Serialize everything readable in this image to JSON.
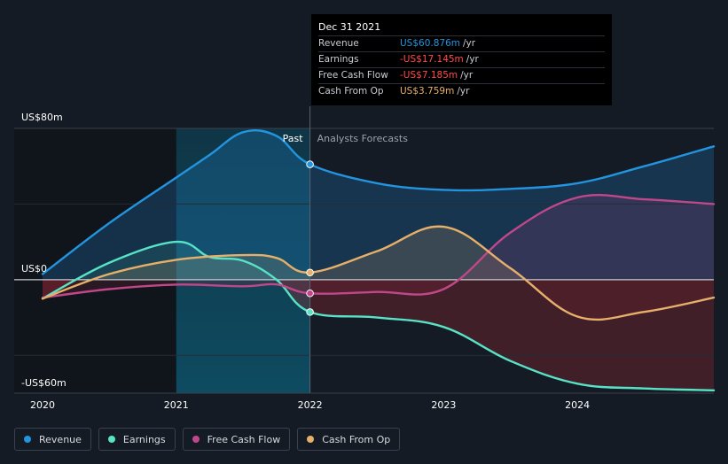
{
  "chart_data": {
    "type": "line",
    "x_domain": [
      2020,
      2025.02
    ],
    "y_domain": [
      -60,
      80
    ],
    "y_ticks": [
      {
        "value": 80,
        "label": "US$80m"
      },
      {
        "value": 0,
        "label": "US$0"
      },
      {
        "value": -60,
        "label": "-US$60m"
      }
    ],
    "x_ticks": [
      {
        "value": 2020,
        "label": "2020"
      },
      {
        "value": 2021,
        "label": "2021"
      },
      {
        "value": 2022,
        "label": "2022"
      },
      {
        "value": 2023,
        "label": "2023"
      },
      {
        "value": 2024,
        "label": "2024"
      }
    ],
    "past_label": "Past",
    "forecast_label": "Analysts Forecasts",
    "divider_x": 2022,
    "highlight_start_x": 2021,
    "series": [
      {
        "name": "Revenue",
        "color": "#2394df",
        "points": [
          [
            2020,
            3
          ],
          [
            2020.5,
            30
          ],
          [
            2021,
            54
          ],
          [
            2021.25,
            66
          ],
          [
            2021.5,
            78
          ],
          [
            2021.75,
            76
          ],
          [
            2022,
            61
          ],
          [
            2022.5,
            51
          ],
          [
            2023,
            47.5
          ],
          [
            2023.5,
            48
          ],
          [
            2024,
            51
          ],
          [
            2024.5,
            60
          ],
          [
            2025.02,
            70.5
          ]
        ]
      },
      {
        "name": "Earnings",
        "color": "#58e3c6",
        "points": [
          [
            2020,
            -10
          ],
          [
            2020.5,
            9
          ],
          [
            2021,
            20
          ],
          [
            2021.25,
            12
          ],
          [
            2021.5,
            10
          ],
          [
            2021.75,
            0
          ],
          [
            2022,
            -17.1
          ],
          [
            2022.5,
            -20
          ],
          [
            2023,
            -25
          ],
          [
            2023.5,
            -43
          ],
          [
            2024,
            -55
          ],
          [
            2024.5,
            -57.5
          ],
          [
            2025.02,
            -58.5
          ]
        ]
      },
      {
        "name": "Free Cash Flow",
        "color": "#c0488a",
        "points": [
          [
            2020,
            -9.5
          ],
          [
            2020.5,
            -5
          ],
          [
            2021,
            -2.6
          ],
          [
            2021.5,
            -3.5
          ],
          [
            2021.75,
            -2.5
          ],
          [
            2022,
            -7.2
          ],
          [
            2022.5,
            -6.5
          ],
          [
            2023,
            -5
          ],
          [
            2023.5,
            25
          ],
          [
            2024,
            43.5
          ],
          [
            2024.5,
            42.5
          ],
          [
            2025.02,
            40
          ]
        ]
      },
      {
        "name": "Cash From Op",
        "color": "#e7b06a",
        "points": [
          [
            2020,
            -10
          ],
          [
            2020.5,
            3
          ],
          [
            2021,
            10.5
          ],
          [
            2021.5,
            13
          ],
          [
            2021.75,
            11.5
          ],
          [
            2022,
            3.8
          ],
          [
            2022.5,
            15
          ],
          [
            2023,
            28
          ],
          [
            2023.5,
            6
          ],
          [
            2024,
            -19.5
          ],
          [
            2024.5,
            -17
          ],
          [
            2025.02,
            -9.5
          ]
        ]
      }
    ]
  },
  "tooltip": {
    "date": "Dec 31 2021",
    "rows": [
      {
        "label": "Revenue",
        "value": "US$60.876m",
        "unit": "/yr",
        "color": "#2394df"
      },
      {
        "label": "Earnings",
        "value": "-US$17.145m",
        "unit": "/yr",
        "color": "#ff4a4a"
      },
      {
        "label": "Free Cash Flow",
        "value": "-US$7.185m",
        "unit": "/yr",
        "color": "#ff4a4a"
      },
      {
        "label": "Cash From Op",
        "value": "US$3.759m",
        "unit": "/yr",
        "color": "#e7b06a"
      }
    ]
  },
  "legend": [
    {
      "label": "Revenue",
      "color": "#2394df"
    },
    {
      "label": "Earnings",
      "color": "#58e3c6"
    },
    {
      "label": "Free Cash Flow",
      "color": "#c0488a"
    },
    {
      "label": "Cash From Op",
      "color": "#e7b06a"
    }
  ]
}
